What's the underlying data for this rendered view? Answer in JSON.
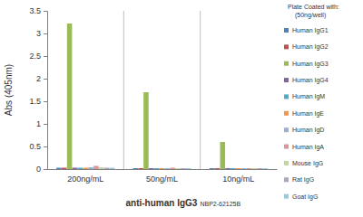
{
  "chart_data": {
    "type": "bar",
    "categories": [
      "200ng/mL",
      "50ng/mL",
      "10ng/mL"
    ],
    "series": [
      {
        "name": "Human IgG1",
        "color": "#4f81bd",
        "values": [
          0.03,
          0.02,
          0.02
        ]
      },
      {
        "name": "Human IgG2",
        "color": "#c0504d",
        "values": [
          0.03,
          0.02,
          0.02
        ]
      },
      {
        "name": "Human IgG3",
        "color": "#9bbb59",
        "values": [
          3.22,
          1.7,
          0.6
        ]
      },
      {
        "name": "Human IgG4",
        "color": "#8064a2",
        "values": [
          0.03,
          0.02,
          0.02
        ]
      },
      {
        "name": "Human IgM",
        "color": "#4bacc6",
        "values": [
          0.03,
          0.02,
          0.02
        ]
      },
      {
        "name": "Human IgE",
        "color": "#f79646",
        "values": [
          0.03,
          0.02,
          0.02
        ]
      },
      {
        "name": "Human IgD",
        "color": "#95b3d7",
        "values": [
          0.04,
          0.02,
          0.02
        ]
      },
      {
        "name": "Human IgA",
        "color": "#d99694",
        "values": [
          0.07,
          0.03,
          0.02
        ]
      },
      {
        "name": "Mouse IgG",
        "color": "#c3d69b",
        "values": [
          0.04,
          0.02,
          0.02
        ]
      },
      {
        "name": "Rat IgG",
        "color": "#b3a2c7",
        "values": [
          0.03,
          0.02,
          0.02
        ]
      },
      {
        "name": "Goat IgG",
        "color": "#93cddd",
        "values": [
          0.03,
          0.02,
          0.02
        ]
      }
    ],
    "ylim": [
      0,
      3.5
    ],
    "yticks": [
      0,
      0.5,
      1,
      1.5,
      2,
      2.5,
      3,
      3.5
    ],
    "y_label": "Abs (405nm)",
    "x_label": "anti-human IgG3",
    "annotations": [
      "NBP2-62125B"
    ],
    "legend_title": "Plate Coated with:",
    "legend_subtitle": "(50ng/well)",
    "legend": "right"
  }
}
